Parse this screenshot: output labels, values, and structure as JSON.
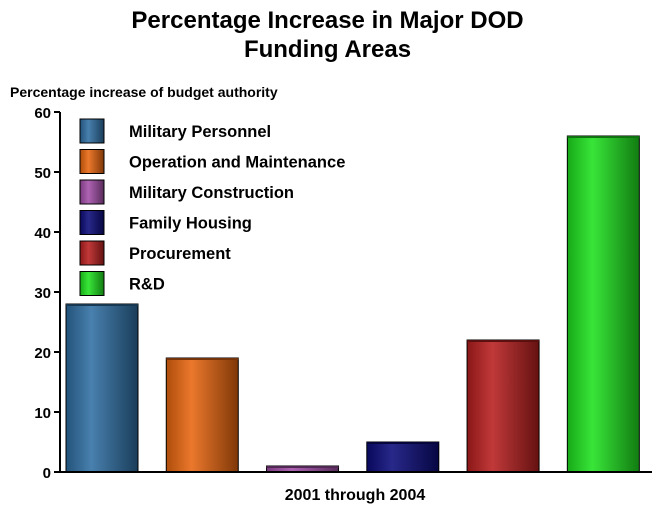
{
  "chart_data": {
    "type": "bar",
    "title_lines": [
      "Percentage Increase in Major DOD",
      "Funding Areas"
    ],
    "ylabel": "Percentage increase of budget authority",
    "xlabel": "2001 through 2004",
    "ylim": [
      0,
      60
    ],
    "yticks": [
      0,
      10,
      20,
      30,
      40,
      50,
      60
    ],
    "grid": false,
    "legend_position": "top-left",
    "series": [
      {
        "name": "Military Personnel",
        "value": 28,
        "color": "#2f6fa3"
      },
      {
        "name": "Operation and Maintenance",
        "value": 19,
        "color": "#e8660f"
      },
      {
        "name": "Military Construction",
        "value": 1,
        "color": "#a24ea8"
      },
      {
        "name": "Family Housing",
        "value": 5,
        "color": "#0b0b7a"
      },
      {
        "name": "Procurement",
        "value": 22,
        "color": "#b81e1e"
      },
      {
        "name": "R&D",
        "value": 56,
        "color": "#1ee21e"
      }
    ]
  }
}
